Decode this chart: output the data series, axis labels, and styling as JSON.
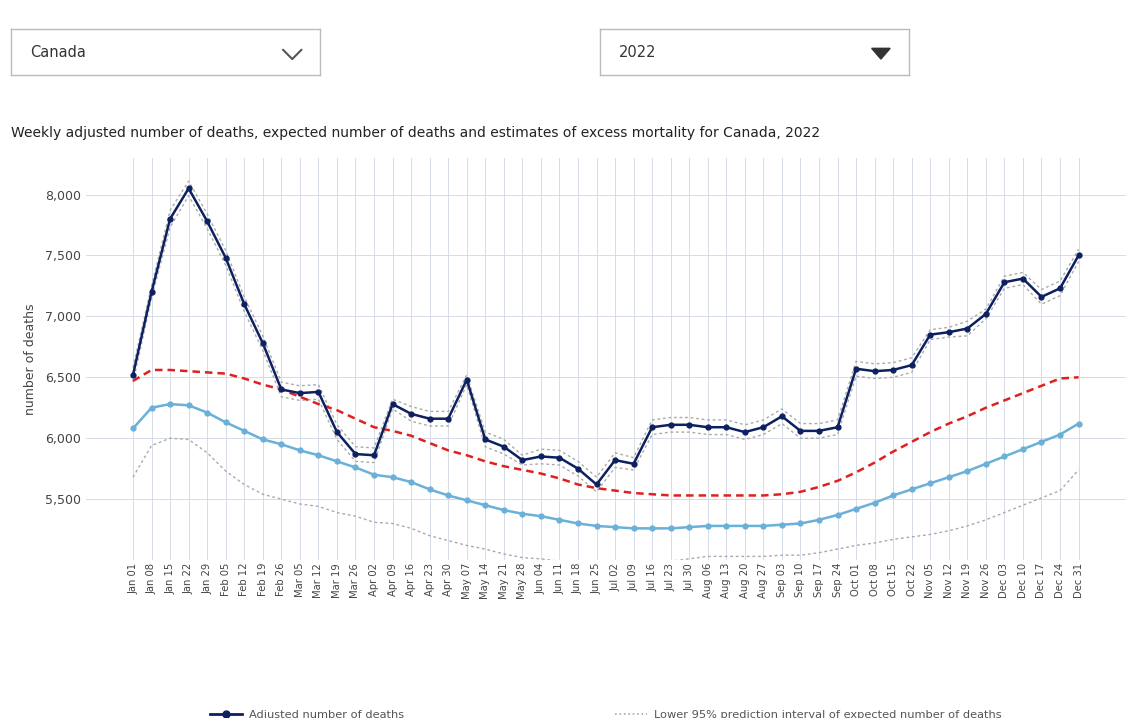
{
  "title": "Weekly adjusted number of deaths, expected number of deaths and estimates of excess mortality for Canada, 2022",
  "ylabel": "number of deaths",
  "background_color": "#ffffff",
  "grid_color": "#d0d7e3",
  "tick_labels": [
    "Jan 01",
    "Jan 08",
    "Jan 15",
    "Jan 22",
    "Jan 29",
    "Feb 05",
    "Feb 12",
    "Feb 19",
    "Feb 26",
    "Mar 05",
    "Mar 12",
    "Mar 19",
    "Mar 26",
    "Apr 02",
    "Apr 09",
    "Apr 16",
    "Apr 23",
    "Apr 30",
    "May 07",
    "May 14",
    "May 21",
    "May 28",
    "Jun 04",
    "Jun 11",
    "Jun 18",
    "Jun 25",
    "Jul 02",
    "Jul 09",
    "Jul 16",
    "Jul 23",
    "Jul 30",
    "Aug 06",
    "Aug 13",
    "Aug 20",
    "Aug 27",
    "Sep 03",
    "Sep 10",
    "Sep 17",
    "Sep 24",
    "Oct 01",
    "Oct 08",
    "Oct 15",
    "Oct 22",
    "Nov 05",
    "Nov 12",
    "Nov 19",
    "Nov 26",
    "Dec 03",
    "Dec 10",
    "Dec 17",
    "Dec 24",
    "Dec 31"
  ],
  "adjusted_deaths": [
    6520,
    7200,
    7800,
    8050,
    7780,
    7480,
    7100,
    6780,
    6400,
    6370,
    6380,
    6050,
    5870,
    5860,
    6280,
    6200,
    6160,
    6160,
    6480,
    5990,
    5930,
    5820,
    5850,
    5840,
    5750,
    5620,
    5820,
    5790,
    6090,
    6110,
    6110,
    6090,
    6090,
    6050,
    6090,
    6180,
    6060,
    6060,
    6090,
    6570,
    6550,
    6560,
    6600,
    6850,
    6870,
    6900,
    7020,
    7280,
    7310,
    7160,
    7230,
    7500
  ],
  "expected_deaths": [
    6080,
    6250,
    6280,
    6270,
    6210,
    6130,
    6060,
    5990,
    5950,
    5900,
    5860,
    5810,
    5760,
    5700,
    5680,
    5640,
    5580,
    5530,
    5490,
    5450,
    5410,
    5380,
    5360,
    5330,
    5300,
    5280,
    5270,
    5260,
    5260,
    5260,
    5270,
    5280,
    5280,
    5280,
    5280,
    5290,
    5300,
    5330,
    5370,
    5420,
    5470,
    5530,
    5580,
    5630,
    5680,
    5730,
    5790,
    5850,
    5910,
    5970,
    6030,
    6120
  ],
  "upper_95_expected": [
    6470,
    6560,
    6560,
    6550,
    6540,
    6530,
    6490,
    6440,
    6400,
    6340,
    6280,
    6230,
    6160,
    6090,
    6060,
    6020,
    5960,
    5900,
    5860,
    5810,
    5770,
    5740,
    5710,
    5670,
    5620,
    5590,
    5570,
    5550,
    5540,
    5530,
    5530,
    5530,
    5530,
    5530,
    5530,
    5540,
    5560,
    5600,
    5650,
    5720,
    5800,
    5890,
    5970,
    6050,
    6120,
    6180,
    6250,
    6310,
    6370,
    6430,
    6490,
    6500
  ],
  "lower_95_expected": [
    5680,
    5940,
    6000,
    5990,
    5880,
    5730,
    5620,
    5540,
    5500,
    5460,
    5440,
    5390,
    5360,
    5310,
    5300,
    5260,
    5200,
    5160,
    5120,
    5090,
    5050,
    5020,
    5010,
    4990,
    4980,
    4970,
    4970,
    4970,
    4980,
    4990,
    5010,
    5030,
    5030,
    5030,
    5030,
    5040,
    5040,
    5060,
    5090,
    5120,
    5140,
    5170,
    5190,
    5210,
    5240,
    5280,
    5330,
    5390,
    5450,
    5510,
    5570,
    5740
  ],
  "upper_95_adjusted": [
    6580,
    7250,
    7870,
    8110,
    7840,
    7540,
    7160,
    6840,
    6460,
    6430,
    6440,
    6110,
    5930,
    5920,
    6320,
    6260,
    6220,
    6220,
    6520,
    6050,
    5990,
    5860,
    5910,
    5900,
    5810,
    5680,
    5880,
    5840,
    6150,
    6170,
    6170,
    6150,
    6150,
    6110,
    6150,
    6240,
    6120,
    6120,
    6150,
    6630,
    6610,
    6620,
    6660,
    6890,
    6910,
    6960,
    7060,
    7330,
    7360,
    7220,
    7290,
    7550
  ],
  "lower_95_adjusted": [
    6460,
    7150,
    7730,
    7990,
    7720,
    7420,
    7040,
    6720,
    6340,
    6310,
    6320,
    5990,
    5810,
    5800,
    6240,
    6140,
    6100,
    6100,
    6440,
    5930,
    5870,
    5780,
    5790,
    5780,
    5690,
    5560,
    5760,
    5740,
    6030,
    6050,
    6050,
    6030,
    6030,
    5990,
    6030,
    6120,
    6000,
    6000,
    6030,
    6510,
    6490,
    6500,
    6540,
    6810,
    6830,
    6840,
    6980,
    7230,
    7260,
    7100,
    7170,
    7450
  ],
  "ylim": [
    5000,
    8300
  ],
  "yticks": [
    5500,
    6000,
    6500,
    7000,
    7500,
    8000
  ],
  "dark_blue": "#0d2060",
  "light_blue": "#6ab0d8",
  "red_dotted": "#e02020",
  "gray_dotted": "#aaaaaa"
}
